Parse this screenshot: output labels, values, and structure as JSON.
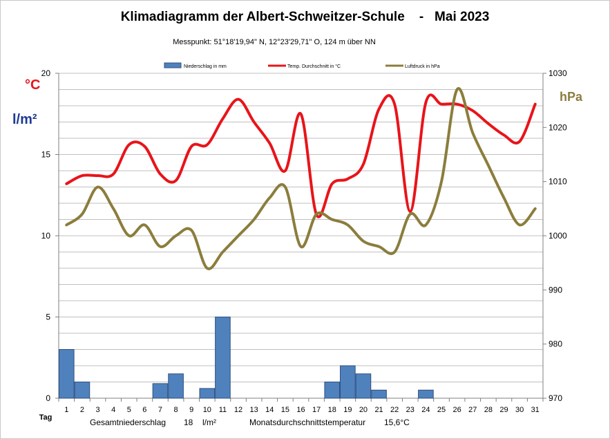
{
  "chart_data": {
    "type": "bar+line",
    "title": "Klimadiagramm der Albert-Schweitzer-Schule    -   Mai 2023",
    "subtitle": "Messpunkt:  51°18'19,94\" N,  12°23'29,71\" O,  124 m über NN",
    "left_axis_labels": [
      "°C",
      "l/m²"
    ],
    "right_axis_label": "hPa",
    "xlabel": "Tag",
    "categories": [
      "1",
      "2",
      "3",
      "4",
      "5",
      "6",
      "7",
      "8",
      "9",
      "10",
      "11",
      "12",
      "13",
      "14",
      "15",
      "16",
      "17",
      "18",
      "19",
      "20",
      "21",
      "22",
      "23",
      "24",
      "25",
      "26",
      "27",
      "28",
      "29",
      "30",
      "31"
    ],
    "ylim_left": [
      0,
      20
    ],
    "yticks_left": [
      "0",
      "5",
      "10",
      "15",
      "20"
    ],
    "ylim_right": [
      970,
      1030
    ],
    "yticks_right": [
      "970",
      "980",
      "990",
      "1000",
      "1010",
      "1020",
      "1030"
    ],
    "legend": {
      "placement": "top",
      "items": [
        "Niederschlag in mm",
        "Temp. Durchschnitt in °C",
        "Luftdruck in hPa"
      ]
    },
    "series": [
      {
        "name": "Niederschlag in mm",
        "type": "bar",
        "axis": "left",
        "color": "#4f81bd",
        "values": [
          3,
          1,
          0,
          0,
          0,
          0,
          0.9,
          1.5,
          0,
          0.6,
          5,
          0,
          0,
          0,
          0,
          0,
          0,
          1,
          2,
          1.5,
          0.5,
          0,
          0,
          0.5,
          0,
          0,
          0,
          0,
          0,
          0,
          0
        ]
      },
      {
        "name": "Temp. Durchschnitt in °C",
        "type": "line",
        "axis": "left",
        "color": "#e8141a",
        "values": [
          13.2,
          13.7,
          13.7,
          13.8,
          15.6,
          15.5,
          13.8,
          13.4,
          15.5,
          15.6,
          17.2,
          18.4,
          17.0,
          15.7,
          14.0,
          17.5,
          11.3,
          13.2,
          13.5,
          14.4,
          17.8,
          18.1,
          11.5,
          18.2,
          18.1,
          18.1,
          17.7,
          16.9,
          16.2,
          15.8,
          18.1
        ]
      },
      {
        "name": "Luftdruck in hPa",
        "type": "line",
        "axis": "right",
        "color": "#8b7d3c",
        "values": [
          1002,
          1004,
          1009,
          1005,
          1000,
          1002,
          998,
          1000,
          1001,
          994,
          997,
          1000,
          1003,
          1007,
          1009,
          998,
          1004,
          1003,
          1002,
          999,
          998,
          997,
          1004,
          1002,
          1010,
          1027,
          1019,
          1013,
          1007,
          1002,
          1005
        ]
      }
    ],
    "summary": {
      "precip_label": "Gesamtniederschlag",
      "precip_value": "18",
      "precip_unit": "l/m²",
      "temp_label": "Monatsdurchschnittstemperatur",
      "temp_value": "15,6°C"
    }
  }
}
